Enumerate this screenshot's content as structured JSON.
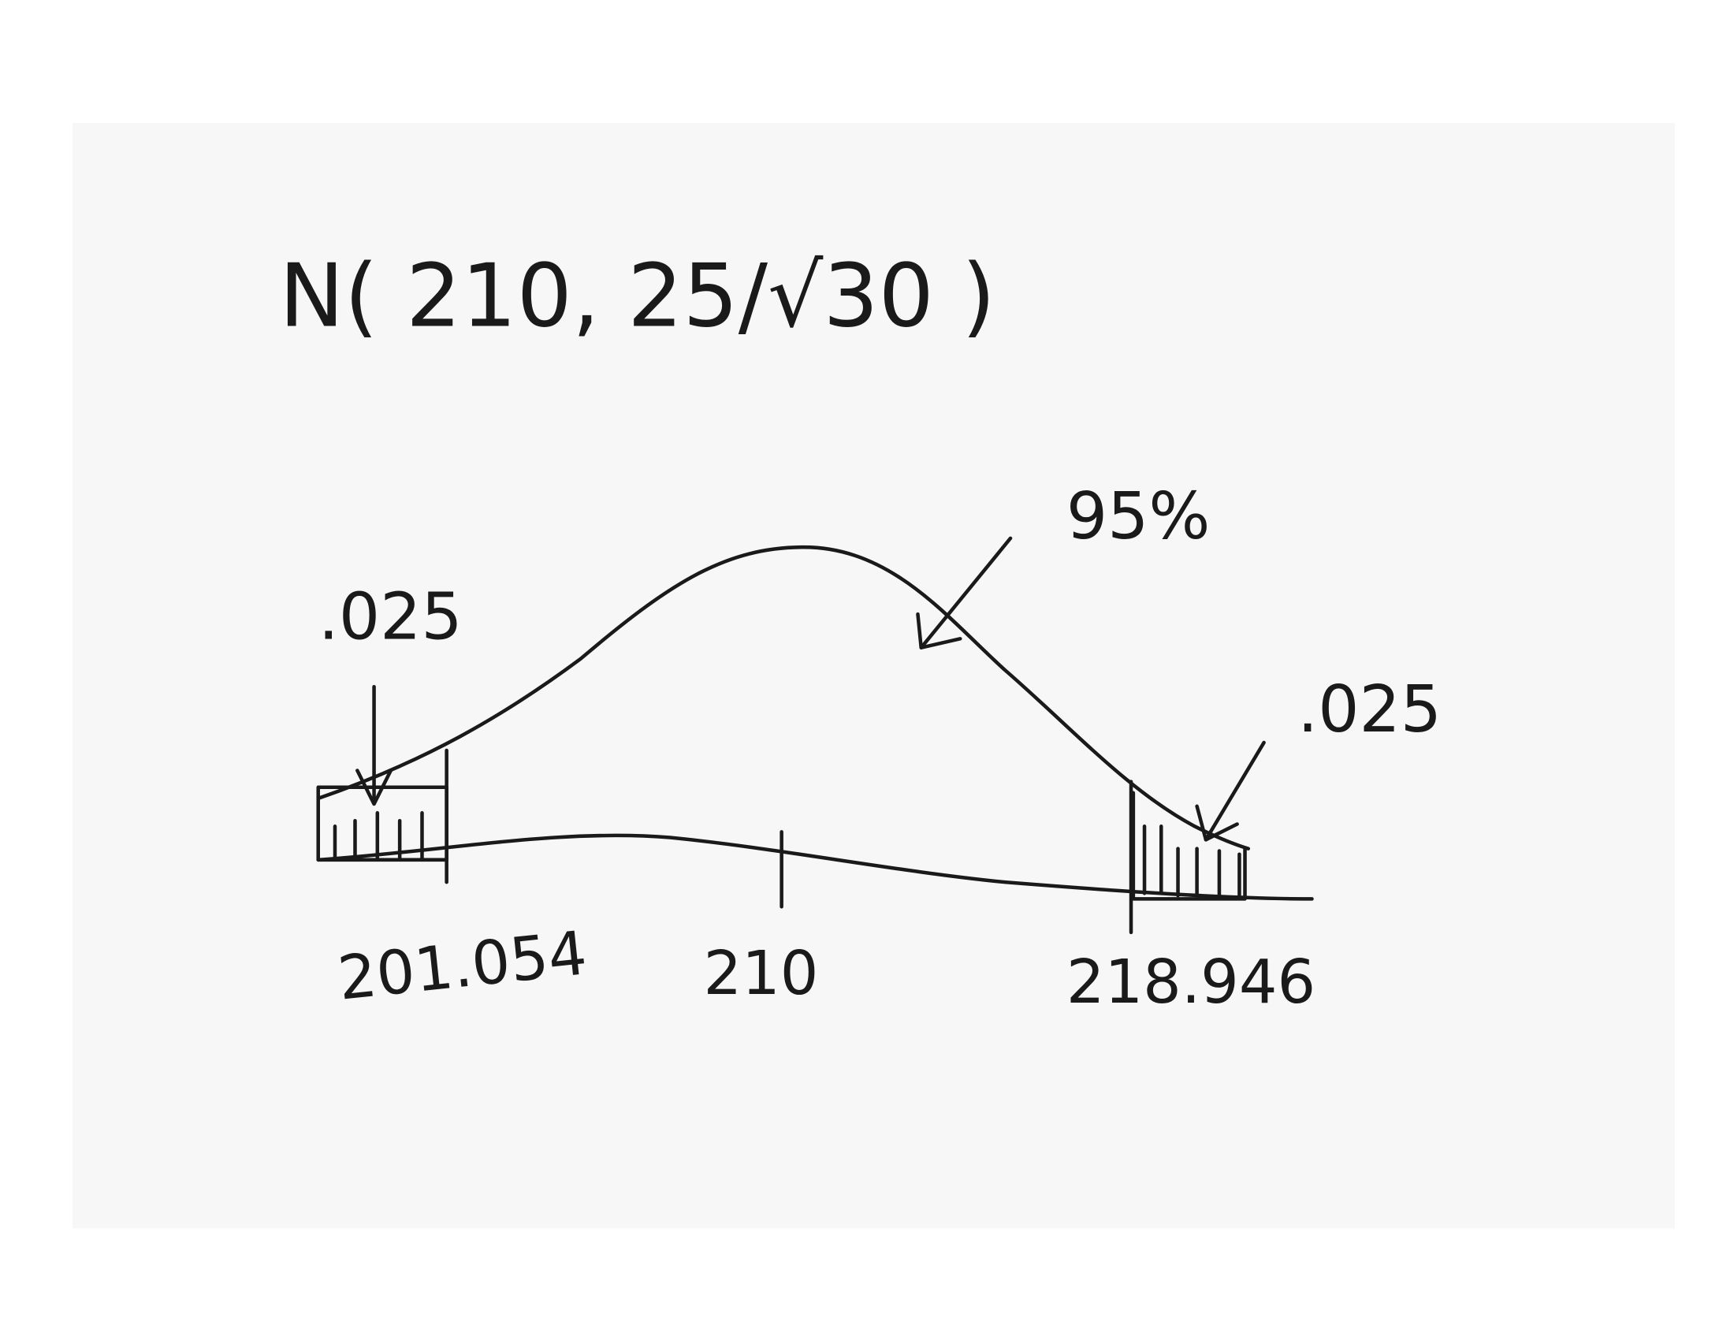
{
  "title": "N( 210, 25/√30 )",
  "annotations": {
    "left_tail": ".025",
    "center_area": "95%",
    "right_tail": ".025"
  },
  "axis_labels": [
    "201.054",
    "210",
    "218.946"
  ]
}
